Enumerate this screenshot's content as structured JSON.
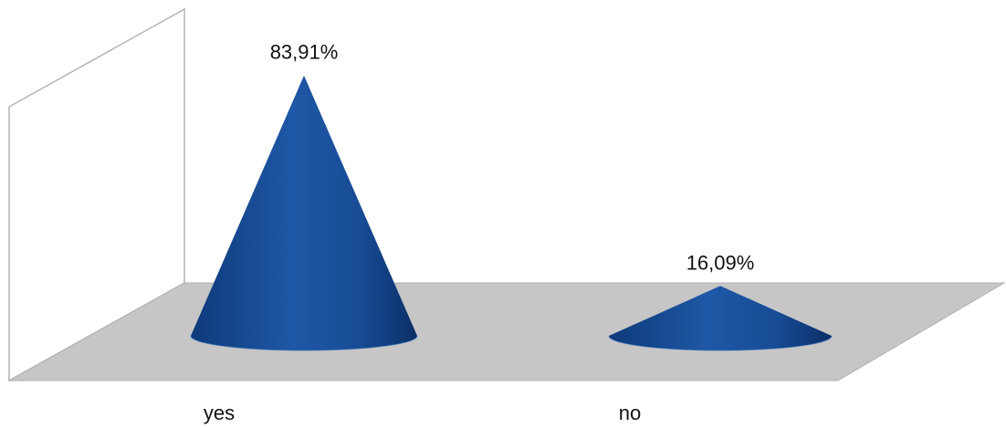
{
  "chart_data": {
    "type": "bar",
    "style": "3d-cone",
    "categories": [
      "yes",
      "no"
    ],
    "values": [
      83.91,
      16.09
    ],
    "data_labels": [
      "83,91%",
      "16,09%"
    ],
    "ylim": [
      0,
      100
    ],
    "grid": false,
    "legend": "none",
    "colors": {
      "cone": "#1b4f9c",
      "cone_dark": "#0d3570",
      "cone_light": "#2c67b8",
      "floor": "#c4c4c4",
      "wall_stroke": "#b0b0b0"
    }
  }
}
